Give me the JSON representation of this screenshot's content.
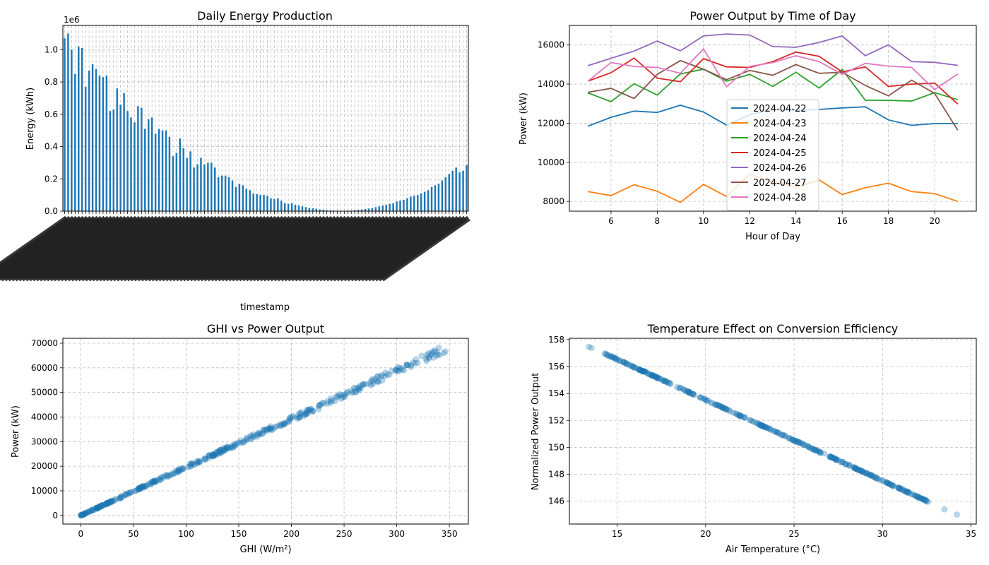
{
  "chart_data": [
    {
      "id": "daily",
      "type": "bar",
      "title": "Daily Energy Production",
      "xlabel": "timestamp",
      "ylabel": "Energy (kWh)",
      "y_scale_label": "1e6",
      "ylim": [
        0,
        1.15
      ],
      "yticks": [
        "0.0",
        "0.2",
        "0.4",
        "0.6",
        "0.8",
        "1.0"
      ],
      "grid": true,
      "bar_color": "#1f77b4",
      "values": [
        1.07,
        1.1,
        1.0,
        0.85,
        1.02,
        1.01,
        0.77,
        0.87,
        0.91,
        0.88,
        0.84,
        0.83,
        0.84,
        0.62,
        0.63,
        0.76,
        0.66,
        0.73,
        0.62,
        0.58,
        0.55,
        0.65,
        0.64,
        0.51,
        0.57,
        0.58,
        0.48,
        0.51,
        0.5,
        0.5,
        0.46,
        0.34,
        0.36,
        0.45,
        0.39,
        0.33,
        0.37,
        0.27,
        0.29,
        0.33,
        0.29,
        0.3,
        0.3,
        0.27,
        0.21,
        0.22,
        0.22,
        0.21,
        0.19,
        0.15,
        0.17,
        0.16,
        0.14,
        0.13,
        0.11,
        0.105,
        0.1,
        0.1,
        0.095,
        0.08,
        0.075,
        0.08,
        0.065,
        0.05,
        0.045,
        0.05,
        0.04,
        0.035,
        0.03,
        0.025,
        0.02,
        0.018,
        0.015,
        0.01,
        0.008,
        0.006,
        0.004,
        0.003,
        0.002,
        0.002,
        0.002,
        0.003,
        0.004,
        0.006,
        0.008,
        0.01,
        0.013,
        0.016,
        0.02,
        0.025,
        0.03,
        0.035,
        0.04,
        0.045,
        0.05,
        0.06,
        0.065,
        0.07,
        0.08,
        0.09,
        0.095,
        0.1,
        0.11,
        0.12,
        0.13,
        0.15,
        0.16,
        0.17,
        0.19,
        0.21,
        0.23,
        0.25,
        0.27,
        0.24,
        0.25,
        0.285
      ]
    },
    {
      "id": "hourly",
      "type": "line",
      "title": "Power Output by Time of Day",
      "xlabel": "Hour of Day",
      "ylabel": "Power (kW)",
      "xlim": [
        4.2,
        21.8
      ],
      "ylim": [
        7500,
        17000
      ],
      "xticks": [
        6,
        8,
        10,
        12,
        14,
        16,
        18,
        20
      ],
      "yticks": [
        8000,
        10000,
        12000,
        14000,
        16000
      ],
      "grid": true,
      "legend_position": "center",
      "x": [
        5,
        6,
        7,
        8,
        9,
        10,
        11,
        12,
        13,
        14,
        15,
        16,
        17,
        18,
        19,
        20,
        21
      ],
      "series": [
        {
          "name": "2024-04-22",
          "color": "#1f77b4",
          "values": [
            11850,
            12300,
            12620,
            12550,
            12920,
            12570,
            11900,
            12430,
            12700,
            12650,
            12700,
            12780,
            12840,
            12170,
            11890,
            11980,
            11980
          ]
        },
        {
          "name": "2024-04-23",
          "color": "#ff7f0e",
          "values": [
            8500,
            8300,
            8850,
            8520,
            7950,
            8870,
            8250,
            9400,
            9000,
            8700,
            9100,
            8350,
            8700,
            8930,
            8500,
            8400,
            8000
          ]
        },
        {
          "name": "2024-04-24",
          "color": "#2ca02c",
          "values": [
            13550,
            13100,
            14020,
            13440,
            14520,
            14760,
            14150,
            14500,
            13880,
            14600,
            13800,
            14750,
            13170,
            13170,
            13130,
            13560,
            13200
          ]
        },
        {
          "name": "2024-04-25",
          "color": "#d62728",
          "values": [
            14150,
            14580,
            15330,
            14300,
            14120,
            15300,
            14880,
            14850,
            15150,
            15640,
            15420,
            14620,
            14880,
            13880,
            14000,
            14050,
            12980
          ]
        },
        {
          "name": "2024-04-26",
          "color": "#9467bd",
          "values": [
            14940,
            15320,
            15690,
            16200,
            15700,
            16460,
            16560,
            16510,
            15920,
            15880,
            16130,
            16460,
            15450,
            16010,
            15150,
            15110,
            14960
          ]
        },
        {
          "name": "2024-04-27",
          "color": "#8c564b",
          "values": [
            13580,
            13780,
            13260,
            14500,
            15200,
            14760,
            14230,
            14700,
            14450,
            15000,
            14550,
            14600,
            13930,
            13400,
            14200,
            13520,
            11640
          ]
        },
        {
          "name": "2024-04-28",
          "color": "#e377c2",
          "values": [
            14150,
            15100,
            14900,
            14850,
            14550,
            15800,
            13860,
            14900,
            15100,
            15450,
            15150,
            14500,
            15060,
            14920,
            14850,
            13720,
            14520
          ]
        }
      ]
    },
    {
      "id": "ghi",
      "type": "scatter",
      "title": "GHI vs Power Output",
      "xlabel": "GHI (W/m²)",
      "ylabel": "Power (kW)",
      "xlim": [
        -17,
        368
      ],
      "ylim": [
        -3500,
        72000
      ],
      "xticks": [
        0,
        50,
        100,
        150,
        200,
        250,
        300,
        350
      ],
      "yticks": [
        0,
        10000,
        20000,
        30000,
        40000,
        50000,
        60000,
        70000
      ],
      "grid": true,
      "point_color": "#1f77b4",
      "x_range": [
        0,
        350
      ],
      "slope_kw_per_wm2": 196
    },
    {
      "id": "temp",
      "type": "scatter",
      "title": "Temperature Effect on Conversion Efficiency",
      "xlabel": "Air Temperature (°C)",
      "ylabel": "Normalized Power Output",
      "xlim": [
        12.3,
        35.3
      ],
      "ylim": [
        144.3,
        158.1
      ],
      "xticks": [
        15,
        20,
        25,
        30,
        35
      ],
      "yticks": [
        146,
        148,
        150,
        152,
        154,
        156,
        158
      ],
      "grid": true,
      "point_color": "#1f77b4",
      "x_range": [
        13.4,
        34.2
      ],
      "y_at_x_start": 157.5,
      "y_at_x_end": 145.0
    }
  ]
}
